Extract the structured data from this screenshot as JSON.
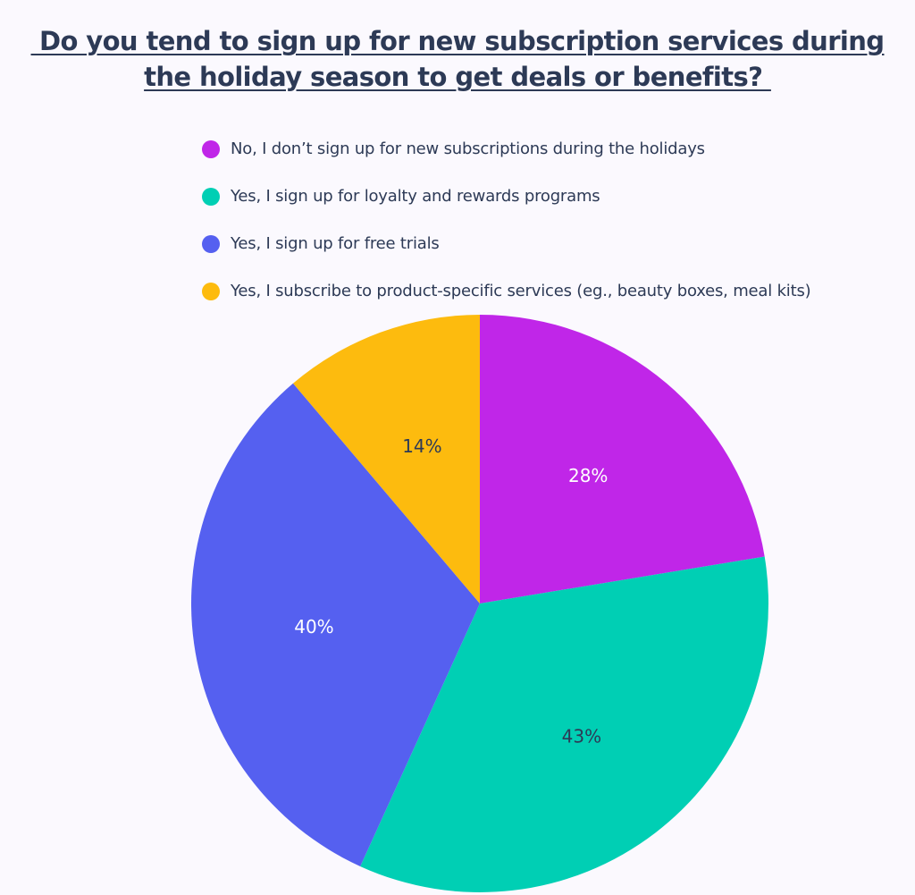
{
  "chart_data": {
    "type": "pie",
    "title_lines": [
      " Do you tend to sign up for new subscription services during",
      "the holiday season to get deals or benefits? "
    ],
    "slices": [
      {
        "label": "No, I don’t sign up for new subscriptions during the holidays",
        "value": 28,
        "display": "28%",
        "color": "#c026e8",
        "label_color": "#ffffff"
      },
      {
        "label": "Yes, I sign up for loyalty and rewards programs",
        "value": 43,
        "display": "43%",
        "color": "#00cfb4",
        "label_color": "#2d3a56"
      },
      {
        "label": "Yes, I sign up for free trials",
        "value": 40,
        "display": "40%",
        "color": "#5560f0",
        "label_color": "#ffffff"
      },
      {
        "label": "Yes, I subscribe to product-specific services (eg., beauty boxes, meal kits)",
        "value": 14,
        "display": "14%",
        "color": "#fdbb0e",
        "label_color": "#2d3a56"
      }
    ],
    "start": "top",
    "direction": "clockwise",
    "legend_position": "top"
  }
}
